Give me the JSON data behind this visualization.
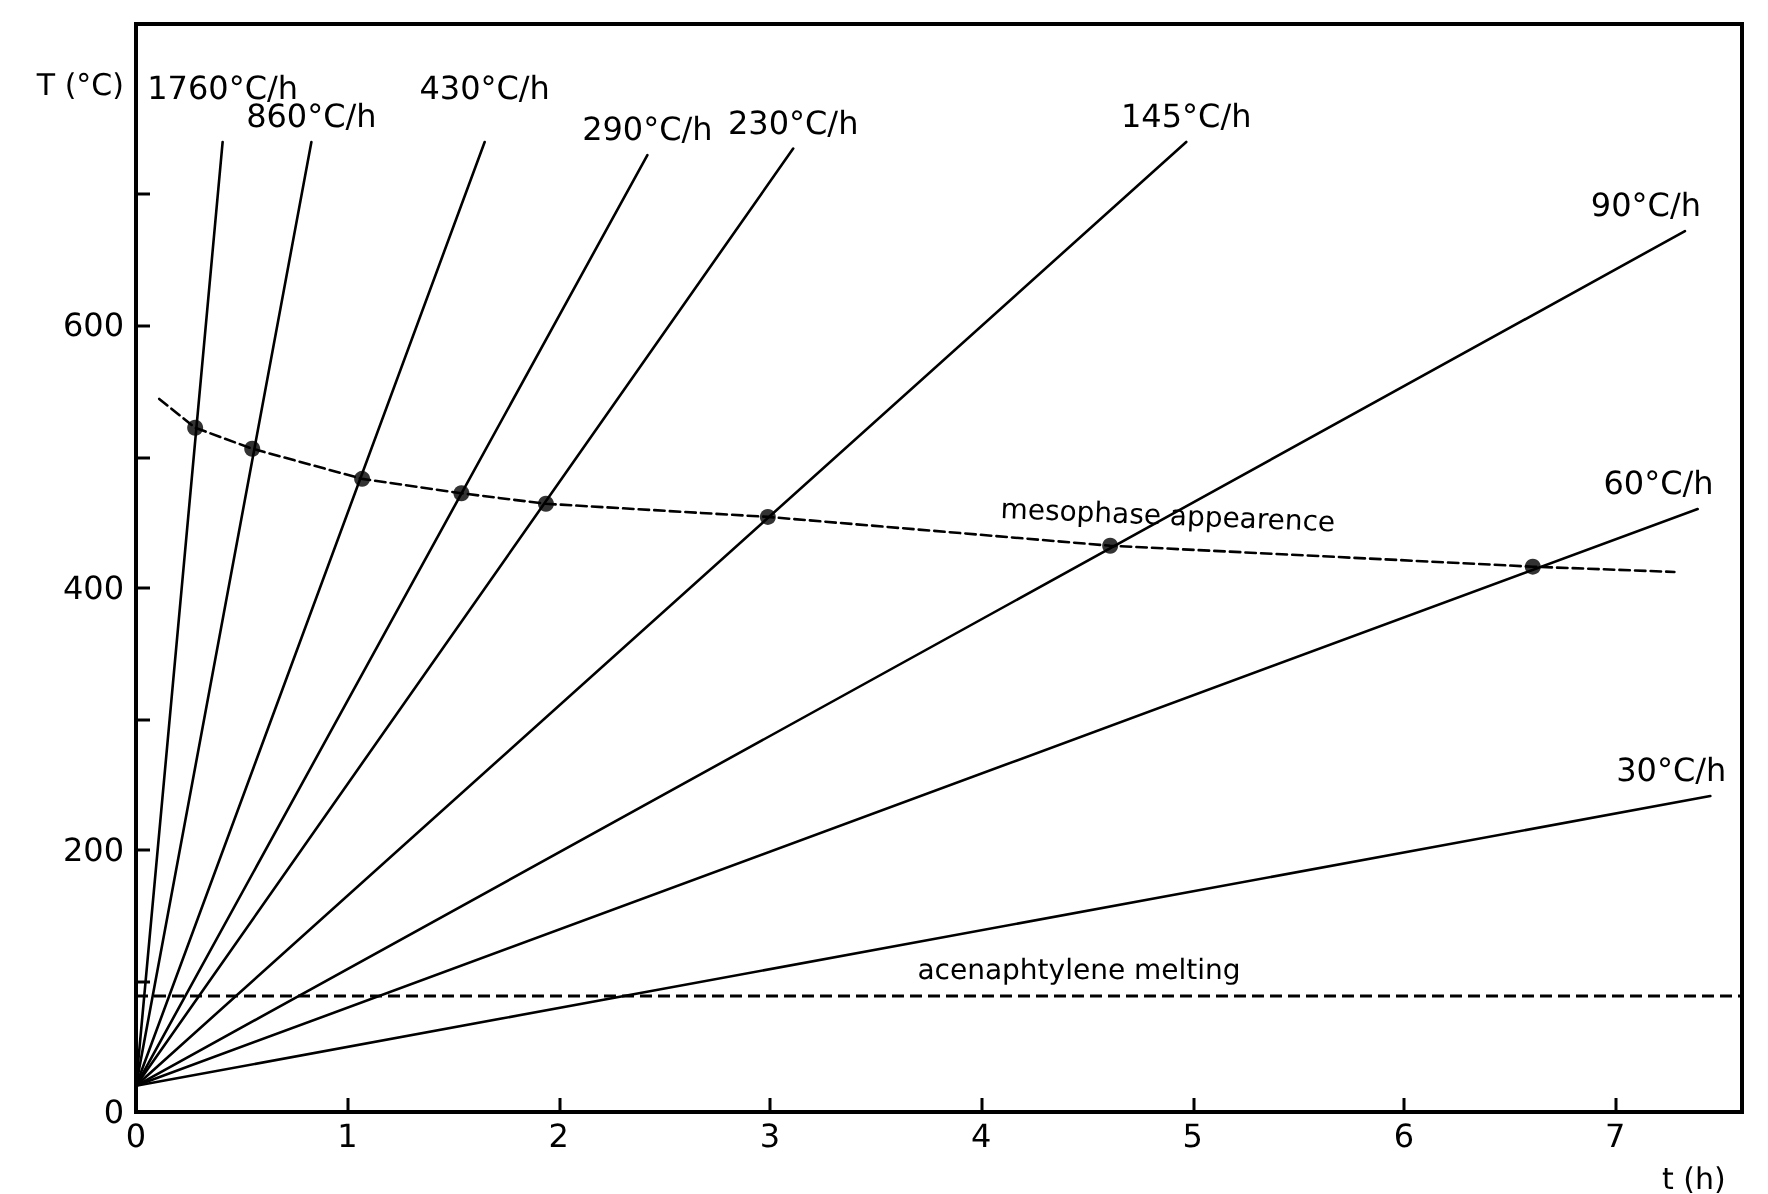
{
  "chart_data": {
    "type": "line",
    "xlabel": "t (h)",
    "ylabel": "T (°C)",
    "xlim": [
      0,
      7.6
    ],
    "ylim": [
      0,
      830
    ],
    "xticks": [
      0,
      1,
      2,
      3,
      4,
      5,
      6,
      7
    ],
    "yticks": [
      0,
      {
        "value": 100,
        "label": null
      },
      200,
      {
        "value": 300,
        "label": null
      },
      400,
      {
        "value": 500,
        "label": null
      },
      600,
      {
        "value": 700,
        "label": null
      }
    ],
    "grid": false,
    "legend": false,
    "marker": "none",
    "line_style": "solid",
    "series": [
      {
        "name": "1760°C/h",
        "color": "#000000",
        "x": [
          0,
          0.41
        ],
        "values": [
          20,
          740
        ]
      },
      {
        "name": "860°C/h",
        "color": "#000000",
        "x": [
          0,
          0.83
        ],
        "values": [
          20,
          740
        ]
      },
      {
        "name": "430°C/h",
        "color": "#000000",
        "x": [
          0,
          1.65
        ],
        "values": [
          20,
          740
        ]
      },
      {
        "name": "290°C/h",
        "color": "#000000",
        "x": [
          0,
          2.42
        ],
        "values": [
          20,
          730
        ]
      },
      {
        "name": "230°C/h",
        "color": "#000000",
        "x": [
          0,
          3.11
        ],
        "values": [
          20,
          735
        ]
      },
      {
        "name": "145°C/h",
        "color": "#000000",
        "x": [
          0,
          4.97
        ],
        "values": [
          20,
          740
        ]
      },
      {
        "name": "90°C/h",
        "color": "#000000",
        "x": [
          0,
          7.33
        ],
        "values": [
          20,
          672
        ]
      },
      {
        "name": "60°C/h",
        "color": "#000000",
        "x": [
          0,
          7.39
        ],
        "values": [
          20,
          460
        ]
      },
      {
        "name": "30°C/h",
        "color": "#000000",
        "x": [
          0,
          7.45
        ],
        "values": [
          20,
          241
        ]
      },
      {
        "type": "line",
        "line_style": "dashed",
        "color": "#000000",
        "x": [
          0.11,
          0.28,
          0.55,
          1.07,
          1.54,
          1.94,
          2.99,
          4.61,
          6.61,
          7.28
        ],
        "values": [
          544,
          522,
          506,
          483,
          472,
          464,
          454,
          432,
          416,
          412
        ]
      },
      {
        "type": "scatter",
        "marker": "circle",
        "color": "#000000",
        "x": [
          0.28,
          0.55,
          1.07,
          1.54,
          1.94,
          2.99,
          4.61,
          6.61
        ],
        "values": [
          522,
          506,
          483,
          472,
          464,
          454,
          432,
          416
        ]
      }
    ],
    "ref_lines": [
      {
        "axis": "y",
        "value": 89,
        "label": "acenaphtylene melting",
        "line_style": "dashed",
        "color": "#000000"
      }
    ],
    "annotations": [
      "mesophase appearence"
    ]
  }
}
